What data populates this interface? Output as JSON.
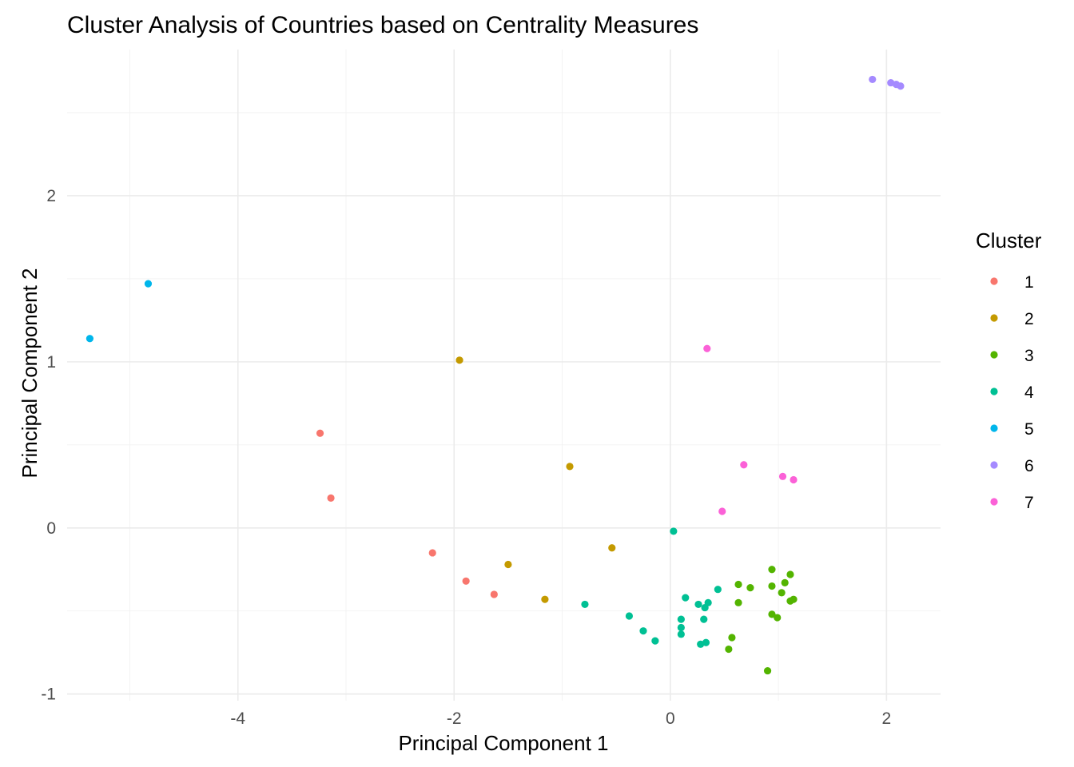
{
  "chart_data": {
    "type": "scatter",
    "title": "Cluster Analysis of Countries based on Centrality Measures",
    "xlabel": "Principal Component 1",
    "ylabel": "Principal Component 2",
    "xlim": [
      -5.58,
      2.5
    ],
    "ylim": [
      -1.04,
      2.88
    ],
    "x_ticks": [
      -4,
      -2,
      0,
      2
    ],
    "x_tick_labels": [
      "-4",
      "-2",
      "0",
      "2"
    ],
    "y_ticks": [
      -1,
      0,
      1,
      2
    ],
    "y_tick_labels": [
      "-1",
      "0",
      "1",
      "2"
    ],
    "x_minor": [
      -5,
      -3,
      -1,
      1
    ],
    "y_minor": [
      -0.5,
      0.5,
      1.5,
      2.5
    ],
    "grid": true,
    "legend": {
      "title": "Cluster",
      "position": "right"
    },
    "series": [
      {
        "name": "1",
        "color": "#F8766D",
        "x": [
          -3.24,
          -3.14,
          -2.2,
          -1.89,
          -1.63
        ],
        "y": [
          0.57,
          0.18,
          -0.15,
          -0.32,
          -0.4
        ]
      },
      {
        "name": "2",
        "color": "#C49A00",
        "x": [
          -1.95,
          -0.93,
          -0.54,
          -1.5,
          -1.16
        ],
        "y": [
          1.01,
          0.37,
          -0.12,
          -0.22,
          -0.43
        ]
      },
      {
        "name": "3",
        "color": "#53B400",
        "x": [
          0.94,
          1.11,
          0.94,
          1.06,
          0.63,
          0.74,
          1.03,
          1.14,
          1.11,
          0.63,
          0.94,
          0.99,
          0.57,
          0.54,
          0.9
        ],
        "y": [
          -0.25,
          -0.28,
          -0.35,
          -0.33,
          -0.34,
          -0.36,
          -0.39,
          -0.43,
          -0.44,
          -0.45,
          -0.52,
          -0.54,
          -0.66,
          -0.73,
          -0.86
        ]
      },
      {
        "name": "4",
        "color": "#00C094",
        "x": [
          0.03,
          0.44,
          0.14,
          0.35,
          0.26,
          0.32,
          -0.79,
          0.1,
          -0.38,
          0.31,
          0.1,
          -0.25,
          0.1,
          -0.14,
          0.33,
          0.28
        ],
        "y": [
          -0.02,
          -0.37,
          -0.42,
          -0.45,
          -0.46,
          -0.48,
          -0.46,
          -0.55,
          -0.53,
          -0.55,
          -0.6,
          -0.62,
          -0.64,
          -0.68,
          -0.69,
          -0.7
        ]
      },
      {
        "name": "5",
        "color": "#00B6EB",
        "x": [
          -4.83,
          -5.37
        ],
        "y": [
          1.47,
          1.14
        ]
      },
      {
        "name": "6",
        "color": "#A58AFF",
        "x": [
          1.87,
          2.04,
          2.09,
          2.13
        ],
        "y": [
          2.7,
          2.68,
          2.67,
          2.66
        ]
      },
      {
        "name": "7",
        "color": "#FB61D7",
        "x": [
          0.34,
          0.68,
          1.04,
          1.14,
          0.48
        ],
        "y": [
          1.08,
          0.38,
          0.31,
          0.29,
          0.1
        ]
      }
    ]
  }
}
